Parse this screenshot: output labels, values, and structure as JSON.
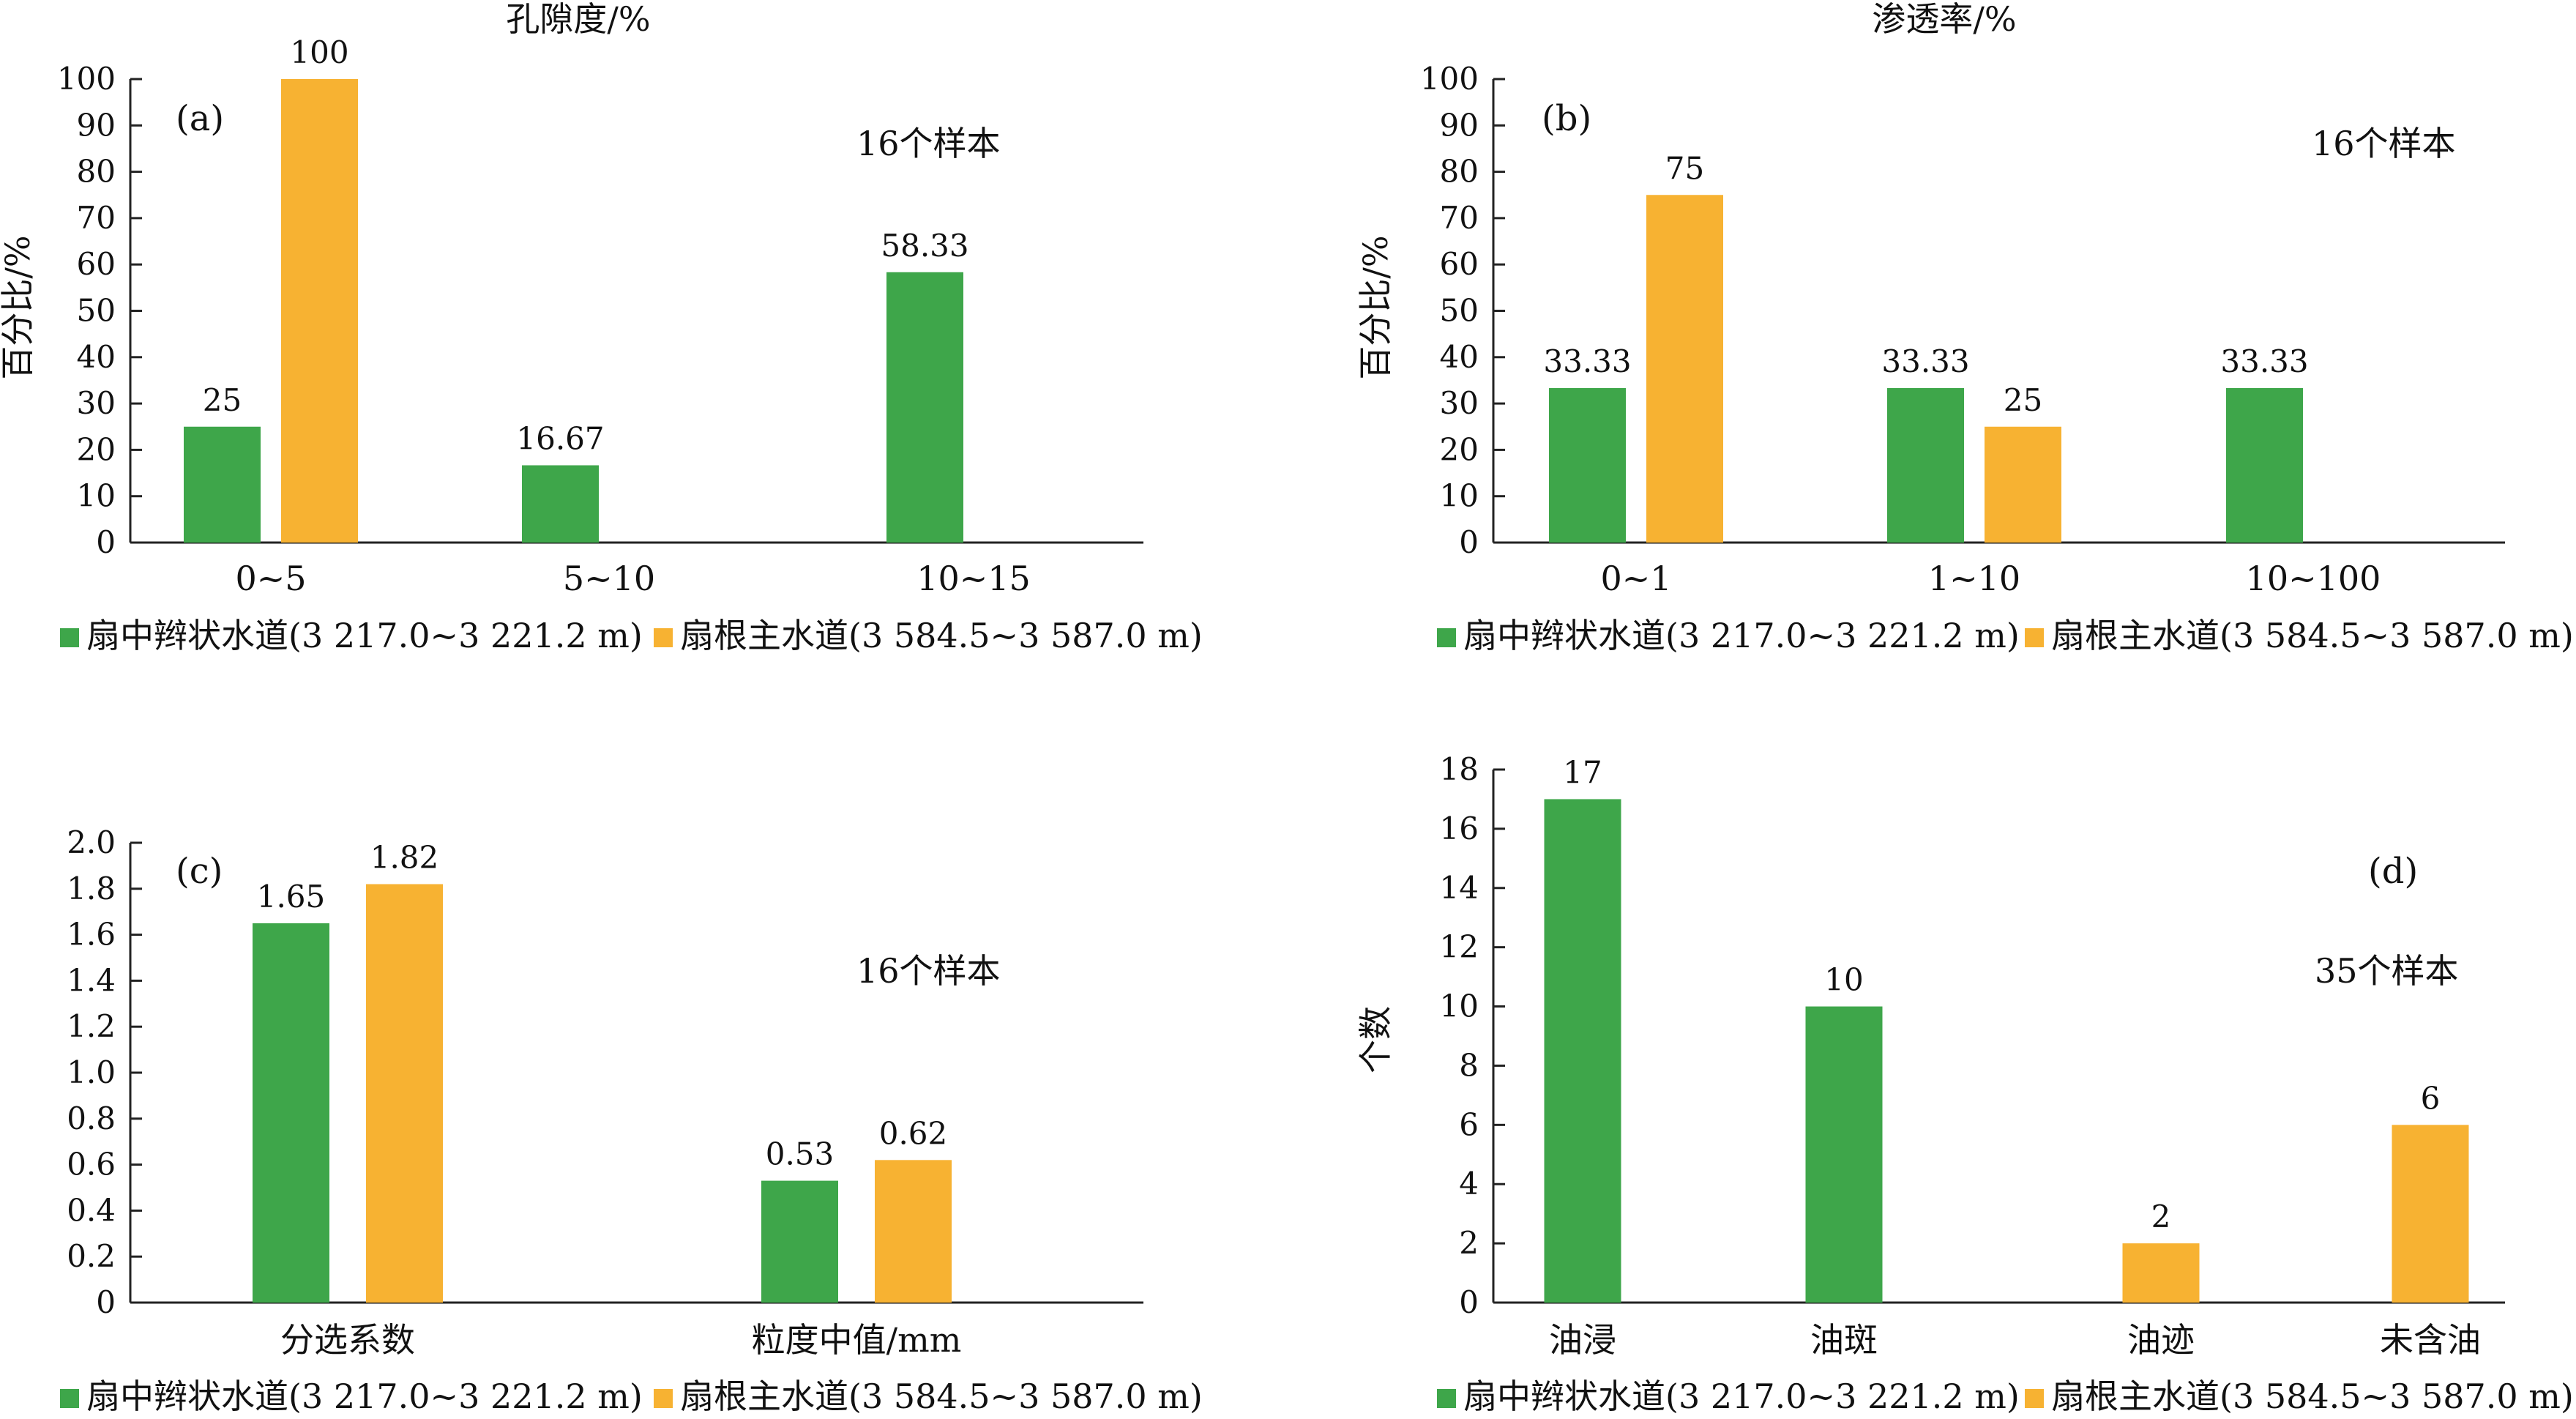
{
  "colors": {
    "series_1": "#3ea64a",
    "series_2": "#f7b232",
    "axis": "#222222"
  },
  "chart_data": [
    {
      "id": "a",
      "type": "bar",
      "title": "孔隙度/%",
      "panel_label": "(a)",
      "note": "16个样本",
      "ylabel": "百分比/%",
      "xlabel": "",
      "ylim": [
        0,
        100
      ],
      "yticks": [
        0,
        10,
        20,
        30,
        40,
        50,
        60,
        70,
        80,
        90,
        100
      ],
      "ytick_labels": [
        "0",
        "10",
        "20",
        "30",
        "40",
        "50",
        "60",
        "70",
        "80",
        "90",
        "100"
      ],
      "categories": [
        "0~5",
        "5~10",
        "10~15"
      ],
      "series": [
        {
          "name": "扇中辫状水道(3 217.0~3 221.2 m)",
          "values": [
            25,
            16.67,
            58.33
          ],
          "labels": [
            "25",
            "16.67",
            "58.33"
          ]
        },
        {
          "name": "扇根主水道(3 584.5~3 587.0 m)",
          "values": [
            100,
            null,
            null
          ],
          "labels": [
            "100",
            "",
            ""
          ]
        }
      ],
      "legend": "bottom",
      "grid": false
    },
    {
      "id": "b",
      "type": "bar",
      "title": "渗透率/%",
      "panel_label": "(b)",
      "note": "16个样本",
      "ylabel": "百分比/%",
      "xlabel": "",
      "ylim": [
        0,
        100
      ],
      "yticks": [
        0,
        10,
        20,
        30,
        40,
        50,
        60,
        70,
        80,
        90,
        100
      ],
      "ytick_labels": [
        "0",
        "10",
        "20",
        "30",
        "40",
        "50",
        "60",
        "70",
        "80",
        "90",
        "100"
      ],
      "categories": [
        "0~1",
        "1~10",
        "10~100"
      ],
      "series": [
        {
          "name": "扇中辫状水道(3 217.0~3 221.2 m)",
          "values": [
            33.33,
            33.33,
            33.33
          ],
          "labels": [
            "33.33",
            "33.33",
            "33.33"
          ]
        },
        {
          "name": "扇根主水道(3 584.5~3 587.0 m)",
          "values": [
            75,
            25,
            null
          ],
          "labels": [
            "75",
            "25",
            ""
          ]
        }
      ],
      "legend": "bottom",
      "grid": false
    },
    {
      "id": "c",
      "type": "bar",
      "title": "",
      "panel_label": "(c)",
      "note": "16个样本",
      "ylabel": "",
      "xlabel": "",
      "ylim": [
        0,
        2.0
      ],
      "yticks": [
        0,
        0.2,
        0.4,
        0.6,
        0.8,
        1.0,
        1.2,
        1.4,
        1.6,
        1.8,
        2.0
      ],
      "ytick_labels": [
        "0",
        "0.2",
        "0.4",
        "0.6",
        "0.8",
        "1.0",
        "1.2",
        "1.4",
        "1.6",
        "1.8",
        "2.0"
      ],
      "categories": [
        "分选系数",
        "粒度中值/mm"
      ],
      "series": [
        {
          "name": "扇中辫状水道(3 217.0~3 221.2 m)",
          "values": [
            1.65,
            0.53
          ],
          "labels": [
            "1.65",
            "0.53"
          ]
        },
        {
          "name": "扇根主水道(3 584.5~3 587.0 m)",
          "values": [
            1.82,
            0.62
          ],
          "labels": [
            "1.82",
            "0.62"
          ]
        }
      ],
      "legend": "bottom",
      "grid": false
    },
    {
      "id": "d",
      "type": "bar",
      "title": "",
      "panel_label": "(d)",
      "note": "35个样本",
      "ylabel": "个数",
      "xlabel": "",
      "ylim": [
        0,
        18
      ],
      "yticks": [
        0,
        2,
        4,
        6,
        8,
        10,
        12,
        14,
        16,
        18
      ],
      "ytick_labels": [
        "0",
        "2",
        "4",
        "6",
        "8",
        "10",
        "12",
        "14",
        "16",
        "18"
      ],
      "categories": [
        "油浸",
        "油斑",
        "油迹",
        "未含油"
      ],
      "series": [
        {
          "name": "扇中辫状水道(3 217.0~3 221.2 m)",
          "values": [
            17,
            10,
            null,
            null
          ],
          "labels": [
            "17",
            "10",
            "",
            ""
          ]
        },
        {
          "name": "扇根主水道(3 584.5~3 587.0 m)",
          "values": [
            null,
            null,
            2,
            6
          ],
          "labels": [
            "",
            "",
            "2",
            "6"
          ]
        }
      ],
      "legend": "bottom",
      "grid": false
    }
  ]
}
